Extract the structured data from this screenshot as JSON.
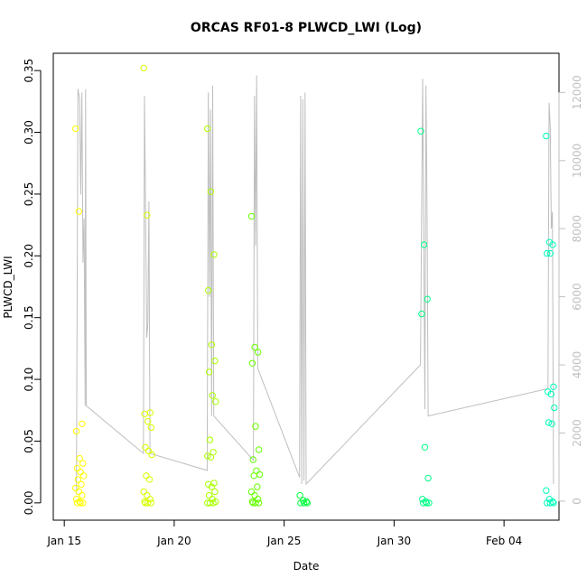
{
  "chart_data": {
    "type": "scatter",
    "title": "ORCAS RF01-8 PLWCD_LWI (Log)",
    "xlabel": "Date",
    "ylabel": "PLWCD_LWI",
    "x_tick_labels": [
      "Jan 15",
      "Jan 20",
      "Jan 25",
      "Jan 30",
      "Feb 04"
    ],
    "x_tick_days": [
      0,
      5,
      10,
      15,
      20
    ],
    "xlim_days": [
      -0.5,
      22.5
    ],
    "y_tick_labels": [
      "0.00",
      "0.05",
      "0.10",
      "0.15",
      "0.20",
      "0.25",
      "0.30",
      "0.35"
    ],
    "ylim": [
      -0.014,
      0.364
    ],
    "y2_tick_labels": [
      "0",
      "2000",
      "4000",
      "6000",
      "8000",
      "10000",
      "12000"
    ],
    "y2lim": [
      -560,
      13150
    ],
    "grid": false,
    "colors": {
      "altitude_line": "#bebebe",
      "right_axis_text": "#bfbfbf",
      "flights": [
        "#ffff00",
        "#d9ff00",
        "#aaff00",
        "#66ff00",
        "#00ff3c",
        "#00ff88",
        "#00ffbb"
      ]
    },
    "altitude_trace": [
      [
        0.55,
        200
      ],
      [
        0.62,
        12100
      ],
      [
        0.7,
        11800
      ],
      [
        0.75,
        9000
      ],
      [
        0.8,
        12000
      ],
      [
        0.85,
        7000
      ],
      [
        0.9,
        8300
      ],
      [
        0.95,
        2800
      ],
      [
        0.97,
        12100
      ],
      [
        1.0,
        2800
      ],
      [
        3.6,
        1400
      ],
      [
        3.65,
        11900
      ],
      [
        3.75,
        4800
      ],
      [
        3.8,
        5200
      ],
      [
        3.85,
        8800
      ],
      [
        3.9,
        1400
      ],
      [
        6.5,
        900
      ],
      [
        6.55,
        12000
      ],
      [
        6.6,
        6000
      ],
      [
        6.65,
        11500
      ],
      [
        6.7,
        2500
      ],
      [
        6.75,
        12200
      ],
      [
        6.8,
        2500
      ],
      [
        8.6,
        1200
      ],
      [
        8.65,
        11900
      ],
      [
        8.7,
        7500
      ],
      [
        8.75,
        12500
      ],
      [
        8.8,
        3900
      ],
      [
        10.7,
        700
      ],
      [
        10.75,
        11900
      ],
      [
        10.8,
        500
      ],
      [
        10.85,
        11800
      ],
      [
        10.9,
        600
      ],
      [
        10.95,
        12000
      ],
      [
        11.0,
        500
      ],
      [
        16.2,
        4000
      ],
      [
        16.3,
        12400
      ],
      [
        16.4,
        2700
      ],
      [
        16.45,
        12200
      ],
      [
        16.5,
        8500
      ],
      [
        16.55,
        2500
      ],
      [
        22.0,
        3300
      ],
      [
        22.05,
        11700
      ],
      [
        22.1,
        11000
      ],
      [
        22.15,
        8000
      ],
      [
        22.2,
        8500
      ],
      [
        22.25,
        500
      ]
    ],
    "series": [
      {
        "day": 0.7,
        "values": [
          0.303,
          0.236,
          0.064,
          0.058,
          0.036,
          0.032,
          0.028,
          0.025,
          0.022,
          0.019,
          0.015,
          0.012,
          0.009,
          0.006,
          0.003,
          0.001,
          0.0,
          0.0,
          0.0
        ]
      },
      {
        "day": 3.8,
        "values": [
          0.352,
          0.233,
          0.073,
          0.072,
          0.066,
          0.061,
          0.045,
          0.042,
          0.039,
          0.022,
          0.019,
          0.009,
          0.006,
          0.003,
          0.001,
          0.0,
          0.0,
          0.0
        ]
      },
      {
        "day": 6.7,
        "values": [
          0.303,
          0.252,
          0.201,
          0.172,
          0.128,
          0.115,
          0.106,
          0.087,
          0.082,
          0.051,
          0.041,
          0.038,
          0.037,
          0.016,
          0.015,
          0.013,
          0.009,
          0.006,
          0.003,
          0.001,
          0.0,
          0.0,
          0.0
        ]
      },
      {
        "day": 8.7,
        "values": [
          0.232,
          0.126,
          0.122,
          0.113,
          0.062,
          0.043,
          0.035,
          0.026,
          0.023,
          0.022,
          0.013,
          0.009,
          0.006,
          0.003,
          0.001,
          0.0,
          0.0,
          0.0
        ]
      },
      {
        "day": 10.9,
        "values": [
          0.006,
          0.002,
          0.001,
          0.0,
          0.0,
          0.0
        ]
      },
      {
        "day": 16.4,
        "values": [
          0.301,
          0.209,
          0.165,
          0.153,
          0.045,
          0.02,
          0.003,
          0.001,
          0.0,
          0.0,
          0.0
        ]
      },
      {
        "day": 22.1,
        "values": [
          0.297,
          0.211,
          0.209,
          0.202,
          0.202,
          0.094,
          0.09,
          0.088,
          0.077,
          0.065,
          0.064,
          0.01,
          0.003,
          0.001,
          0.0,
          0.0,
          0.0
        ]
      }
    ]
  }
}
